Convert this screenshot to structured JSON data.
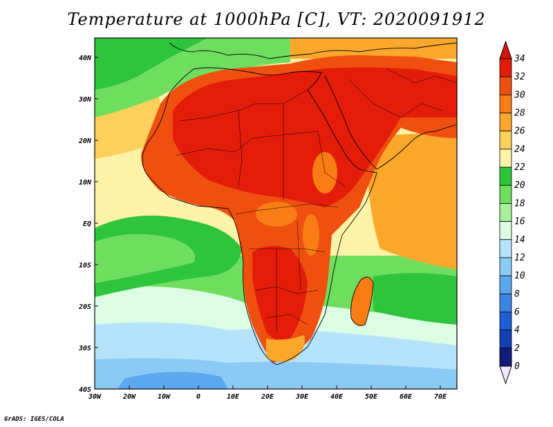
{
  "title": "Temperature at 1000hPa [C], VT: 2020091912",
  "credit": "GrADS: IGES/COLA",
  "map": {
    "lon_labels": [
      "30W",
      "20W",
      "10W",
      "0",
      "10E",
      "20E",
      "30E",
      "40E",
      "50E",
      "60E",
      "70E"
    ],
    "lat_labels": [
      "40N",
      "30N",
      "20N",
      "10N",
      "EQ",
      "10S",
      "20S",
      "30S",
      "40S"
    ]
  },
  "colorbar": {
    "levels": [
      "34",
      "32",
      "30",
      "28",
      "26",
      "24",
      "22",
      "20",
      "18",
      "16",
      "14",
      "12",
      "10",
      "8",
      "6",
      "4",
      "2",
      "0"
    ],
    "colors": [
      "#e41c0a",
      "#f0500f",
      "#f97c14",
      "#fba72b",
      "#fcd05a",
      "#fdf3a8",
      "#2ec53c",
      "#6fde5f",
      "#a8f19a",
      "#ddfce4",
      "#b5e3fa",
      "#8ccaf6",
      "#5ca8ef",
      "#3b85e6",
      "#1f5ed6",
      "#1140b5",
      "#0a2490",
      "#f0e8fb"
    ],
    "top_color": "#d6150a",
    "bottom_color": "#0f1c7a"
  }
}
